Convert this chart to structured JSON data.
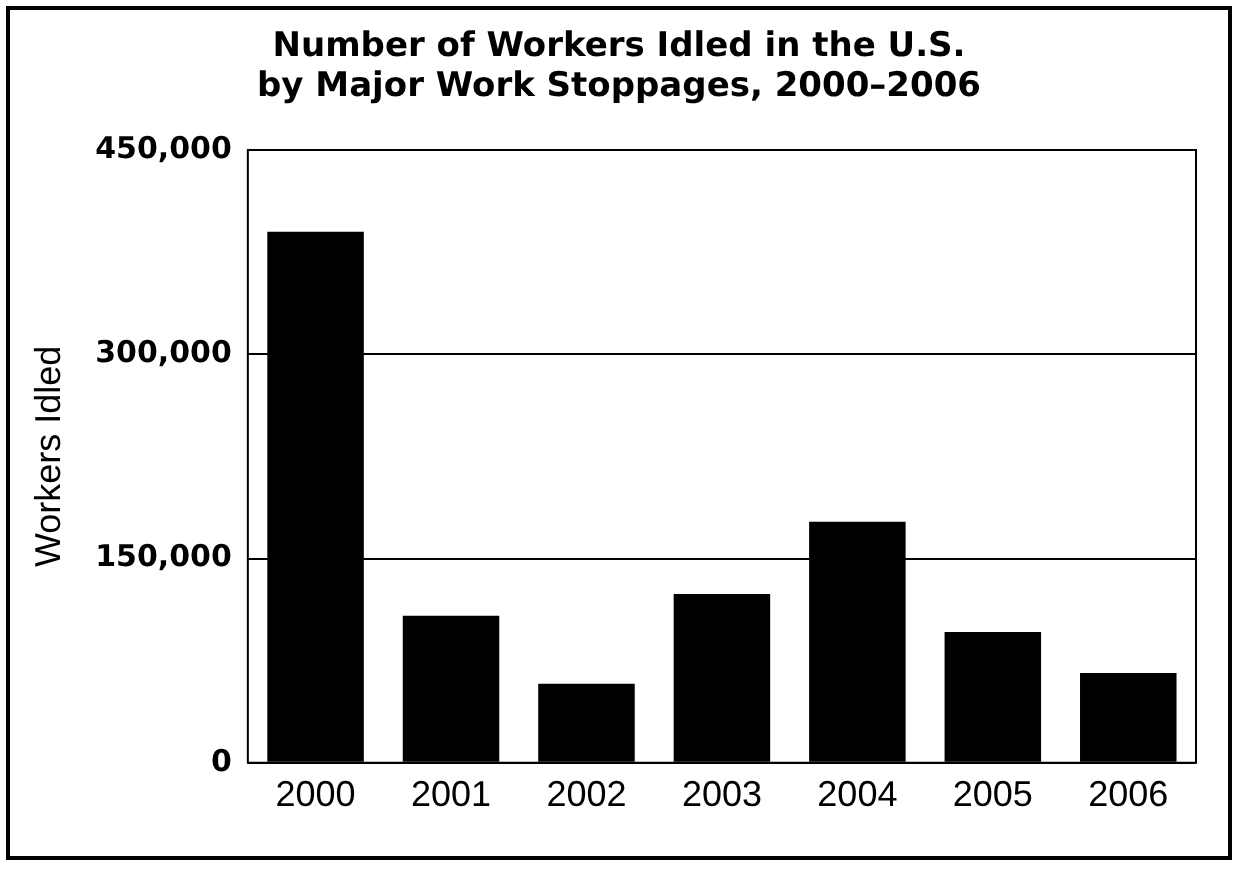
{
  "chart_data": {
    "type": "bar",
    "title": "Number of Workers Idled in the U.S.\nby Major Work Stoppages, 2000–2006",
    "ylabel": "Workers Idled",
    "categories": [
      "2000",
      "2001",
      "2002",
      "2003",
      "2004",
      "2005",
      "2006"
    ],
    "values": [
      390000,
      108000,
      58000,
      124000,
      177000,
      96000,
      66000
    ],
    "color": "#000000",
    "ylim": [
      0,
      450000
    ],
    "yticks": [
      {
        "value": 0,
        "label": "0"
      },
      {
        "value": 150000,
        "label": "150,000"
      },
      {
        "value": 300000,
        "label": "300,000"
      },
      {
        "value": 450000,
        "label": "450,000"
      }
    ],
    "grid": "y"
  }
}
